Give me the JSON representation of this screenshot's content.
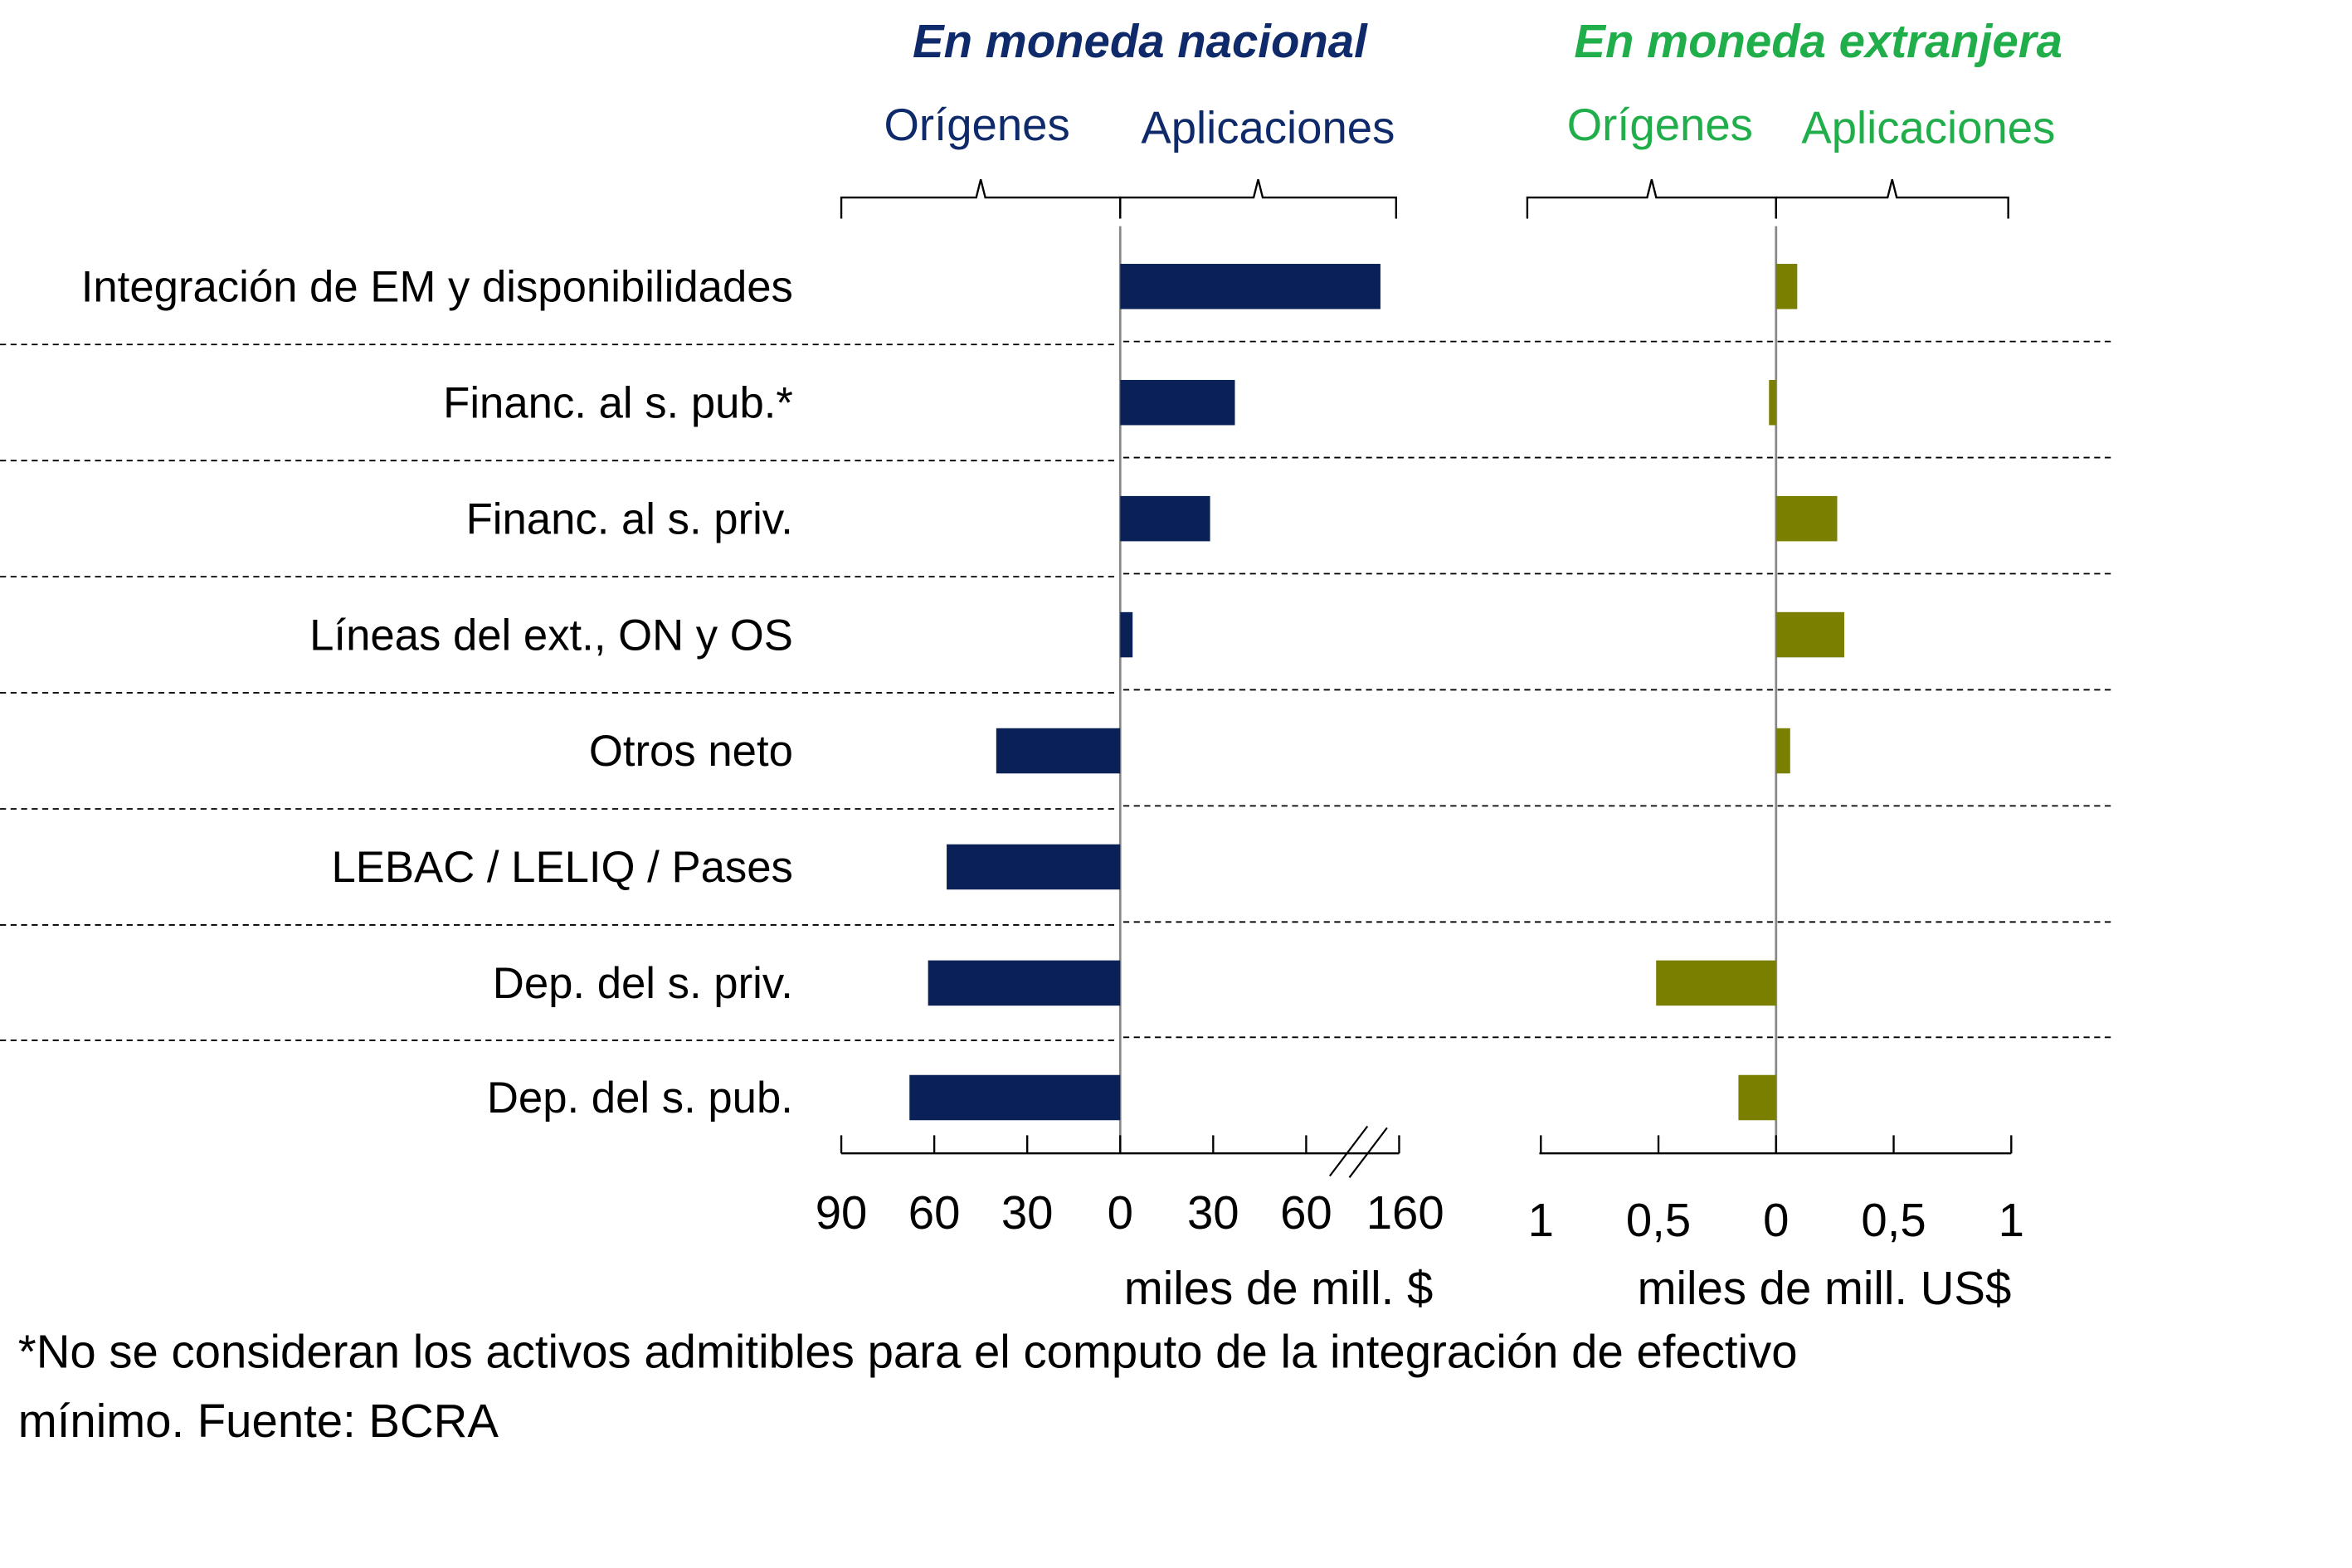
{
  "chart_data": [
    {
      "type": "bar",
      "orientation": "horizontal",
      "title": "En moneda nacional",
      "left_label": "Orígenes",
      "right_label": "Aplicaciones",
      "xlabel": "miles de mill. $",
      "categories": [
        "Integración de EM y disponibilidades",
        "Financ. al s. pub.*",
        "Financ. al s. priv.",
        "Líneas del ext., ON y OS",
        "Otros neto",
        "LEBAC / LELIQ / Pases",
        "Dep. del s. priv.",
        "Dep. del s. pub."
      ],
      "values": [
        140,
        37,
        29,
        4,
        -40,
        -56,
        -62,
        -68
      ],
      "xlim": [
        -90,
        160
      ],
      "axis_break": [
        60,
        160
      ],
      "ticks": [
        -90,
        -60,
        -30,
        0,
        30,
        60,
        160
      ],
      "tick_labels": [
        "90",
        "60",
        "30",
        "0",
        "30",
        "60",
        "160"
      ],
      "color": "#0a2158",
      "title_color": "#0f2a6b"
    },
    {
      "type": "bar",
      "orientation": "horizontal",
      "title": "En moneda extranjera",
      "left_label": "Orígenes",
      "right_label": "Aplicaciones",
      "xlabel": "miles de mill. US$",
      "categories": [
        "Integración de EM y disponibilidades",
        "Financ. al s. pub.*",
        "Financ. al s. priv.",
        "Líneas del ext., ON y OS",
        "Otros neto",
        "LEBAC / LELIQ / Pases",
        "Dep. del s. priv.",
        "Dep. del s. pub."
      ],
      "values": [
        0.09,
        -0.03,
        0.26,
        0.29,
        0.06,
        0,
        -0.51,
        -0.16
      ],
      "xlim": [
        -1,
        1
      ],
      "ticks": [
        -1,
        -0.5,
        0,
        0.5,
        1
      ],
      "tick_labels": [
        "1",
        "0,5",
        "0",
        "0,5",
        "1"
      ],
      "color": "#7a7f00",
      "title_color": "#1fae4a"
    }
  ],
  "footnote_line1": "*No se consideran los activos admitibles para el computo de la integración de efectivo",
  "footnote_line2": "mínimo.  Fuente: BCRA"
}
